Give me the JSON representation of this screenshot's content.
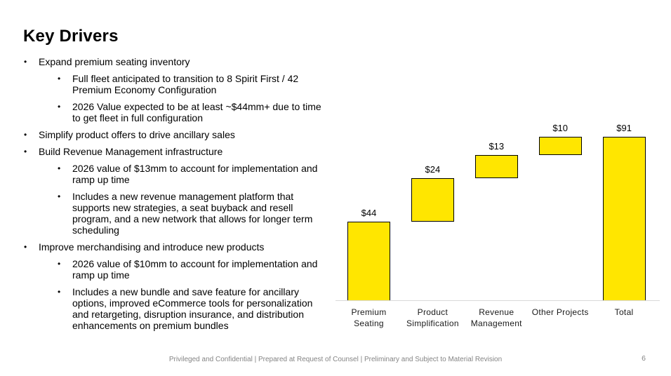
{
  "slide": {
    "title": "Key Drivers",
    "footer": "Privileged and Confidential | Prepared at Request of Counsel | Preliminary and Subject to Material Revision",
    "page_number": "6"
  },
  "bullets": [
    {
      "text": "Expand premium seating inventory",
      "subs": [
        "Full fleet anticipated to transition to 8 Spirit First / 42 Premium Economy Configuration",
        "2026 Value expected to be at least ~$44mm+ due to time to get fleet in full configuration"
      ]
    },
    {
      "text": "Simplify product offers to drive ancillary sales",
      "subs": []
    },
    {
      "text": "Build Revenue Management infrastructure",
      "subs": [
        "2026 value of $13mm to account for implementation and ramp up time",
        "Includes a new revenue management platform that supports new strategies, a seat buyback and resell program, and a new network that allows for longer term scheduling"
      ]
    },
    {
      "text": "Improve merchandising and introduce new products",
      "subs": [
        "2026 value of $10mm to account for implementation and ramp up time",
        "Includes a new bundle and save feature for ancillary options, improved eCommerce tools for personalization and retargeting, disruption insurance, and distribution enhancements on premium bundles"
      ]
    }
  ],
  "chart_data": {
    "type": "bar",
    "subtype": "waterfall",
    "title": "",
    "xlabel": "",
    "ylabel": "",
    "categories": [
      "Premium Seating",
      "Product Simplification",
      "Revenue Management",
      "Other Projects",
      "Total"
    ],
    "values": [
      44,
      24,
      13,
      10,
      91
    ],
    "starts": [
      0,
      44,
      68,
      81,
      0
    ],
    "cumulative": [
      44,
      68,
      81,
      91,
      91
    ],
    "labels": [
      "$44",
      "$24",
      "$13",
      "$10",
      "$91"
    ],
    "units": "$mm",
    "ylim": [
      0,
      91
    ],
    "grid": false,
    "legend_position": "none",
    "bar_color": "#ffe600",
    "bar_border_color": "#000000",
    "axis_line_color": "#d9d9d9"
  }
}
